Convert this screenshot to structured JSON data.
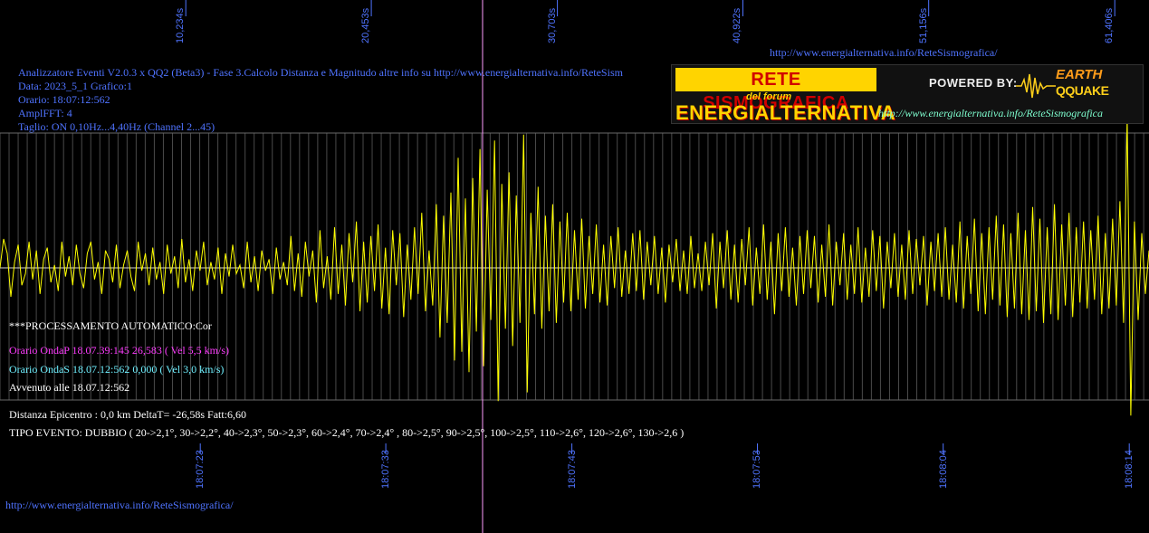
{
  "header": {
    "title": "Analizzatore Eventi V2.0.3 x QQ2 (Beta3) - Fase 3.Calcolo Distanza e Magnitudo altre info su http://www.energialternativa.info/ReteSism",
    "data": "Data: 2023_5_1 Grafico:1",
    "orario": "Orario: 18:07:12:562",
    "ampl": "AmplFFT: 4",
    "taglio": "Taglio: ON 0,10Hz...4,40Hz      (Channel 2...45)"
  },
  "top_url": "http://www.energialternativa.info/ReteSismografica/",
  "bottom_url": "http://www.energialternativa.info/ReteSismografica/",
  "logo": {
    "line1": "RETE SISMOGRAFICA",
    "line2": "del forum",
    "line3": "ENERGIALTERNATIVA",
    "powered": "POWERED BY:",
    "earth": "EARTH",
    "qquake": "QQUAKE",
    "url": "http://www.energialternativa.info/ReteSismografica"
  },
  "info": {
    "processing": "***PROCESSAMENTO AUTOMATICO:Cor",
    "onda_p": "Orario OndaP 18.07.39:145  26,583 ( Vel 5,5 km/s)",
    "onda_s": "Orario OndaS 18.07.12:562  0,000 ( Vel 3,0 km/s)",
    "avvenuto": "Avvenuto alle 18.07.12:562",
    "distanza": "Distanza Epicentro : 0,0 km DeltaT= -26,58s  Fatt:6,60",
    "tipo": "TIPO EVENTO: DUBBIO ( 20->2,1°, 30->2,2°, 40->2,3°, 50->2,3°, 60->2,4°, 70->2,4° , 80->2,5°, 90->2,5°, 100->2,5°, 110->2,6°, 120->2,6°, 130->2,6 )"
  },
  "colors": {
    "background": "#000000",
    "trace": "#ffff00",
    "grid": "#5a5a5a",
    "marker": "#ff9cff",
    "tick_text": "#4f73ff"
  },
  "chart_data": {
    "type": "line",
    "top_ticks": [
      "10,234s",
      "20,453s",
      "30,703s",
      "40,922s",
      "51,156s",
      "61,406s"
    ],
    "top_ticks_seconds": [
      10.234,
      20.453,
      30.703,
      40.922,
      51.156,
      61.406
    ],
    "bottom_ticks": [
      "18:07:23",
      "18:07:33",
      "18:07:43",
      "18:07:53",
      "18:08:04",
      "18:08:14"
    ],
    "x_range_seconds": [
      0,
      63
    ],
    "marker_seconds": 26.583,
    "grid": true,
    "series": [
      {
        "values": [
          0,
          1,
          0.5,
          -1,
          0.2,
          0.8,
          -0.6,
          -0.2,
          0.9,
          -0.4,
          0.6,
          -0.9,
          0.3,
          0.7,
          -0.5,
          0.1,
          -0.8,
          0.9,
          -0.3,
          0.4,
          -0.6,
          0.8,
          -0.2,
          -0.7,
          0.5,
          0.9,
          -0.4,
          0.2,
          -0.9,
          0.6,
          0.3,
          -0.5,
          0.8,
          -0.7,
          0.1,
          0.6,
          -0.3,
          -0.8,
          0.9,
          -0.1,
          0.5,
          -0.6,
          0.7,
          -0.4,
          0.2,
          -0.9,
          0.8,
          -0.2,
          0.4,
          -0.7,
          1,
          -0.5,
          0.3,
          -0.8,
          0.6,
          -0.1,
          0.9,
          -0.6,
          0.2,
          -0.4,
          0.7,
          -0.9,
          0.5,
          -0.3,
          0.8,
          -0.2,
          0.1,
          -0.7,
          0.9,
          -0.5,
          0.4,
          -0.8,
          0.6,
          -0.1,
          0.3,
          -0.9,
          0.7,
          -0.4,
          0.2,
          -0.6,
          1.1,
          -0.8,
          0.5,
          -1,
          0.9,
          -0.3,
          0.6,
          -1.2,
          1.3,
          -0.7,
          0.4,
          -1.1,
          1.4,
          -0.9,
          0.8,
          -1.3,
          1.2,
          -0.5,
          1.6,
          -1.5,
          0.9,
          -1.2,
          1.1,
          -0.8,
          1.5,
          -1.4,
          0.7,
          -1.6,
          1.3,
          -0.6,
          1.2,
          -1.7,
          0.8,
          -1.1,
          1.4,
          -0.9,
          1.9,
          -1.5,
          0.6,
          -1.3,
          2.2,
          -2.4,
          1.8,
          -1.9,
          2.6,
          -3.2,
          3.8,
          -2.9,
          2.4,
          -3.6,
          3.1,
          -2.2,
          4.1,
          -3.4,
          2.7,
          -1.8,
          4.4,
          -4.6,
          2.9,
          -2.1,
          3.3,
          -2.7,
          2.5,
          -1.9,
          4.6,
          -4.3,
          1.9,
          -1.6,
          2.8,
          -2.1,
          1.8,
          -1.5,
          2.2,
          -1.9,
          1.6,
          -1.2,
          1.9,
          -1.5,
          1.3,
          -1.1,
          1.7,
          -1.4,
          1.1,
          -0.9,
          1.5,
          -1.2,
          0.8,
          -1.3,
          1.1,
          -0.7,
          1.4,
          -1,
          0.6,
          -0.9,
          1.2,
          -0.8,
          1.3,
          -1.1,
          0.9,
          -0.6,
          1.1,
          -0.9,
          0.7,
          -1.2,
          0.8,
          -0.5,
          1,
          -0.8,
          0.6,
          -0.9,
          1.1,
          -0.7,
          0.5,
          -0.8,
          0.9,
          -0.6,
          1.2,
          -1.4,
          0.9,
          -0.7,
          1.3,
          -1.1,
          0.8,
          -1.2,
          1,
          -0.6,
          1.4,
          -1.3,
          0.7,
          -0.9,
          1.5,
          -1.1,
          0.9,
          -1.6,
          1.2,
          -0.8,
          1.4,
          -1,
          0.7,
          -1.3,
          1.1,
          -0.9,
          1.3,
          -0.7,
          1.1,
          -1.2,
          0.8,
          -1,
          1.5,
          -1.3,
          0.9,
          -0.6,
          1.2,
          -1.1,
          0.8,
          -0.9,
          1.4,
          -1.2,
          0.7,
          -1,
          1.3,
          -0.8,
          1.1,
          -1.4,
          0.9,
          -0.7,
          1.2,
          -1,
          0.8,
          -1.1,
          1.3,
          -0.9,
          1,
          -0.6,
          1.1,
          -1.3,
          0.9,
          -0.8,
          1.2,
          -1,
          1.4,
          -1.1,
          0.8,
          -1.2,
          1.6,
          -1.4,
          1.1,
          -0.9,
          1.7,
          -1.5,
          1.2,
          -1.6,
          1.4,
          -1.1,
          1.8,
          -1.3,
          1.5,
          -1.7,
          1.2,
          -1.4,
          1.9,
          -1.6,
          1.3,
          -1.8,
          2.1,
          -1.5,
          1.7,
          -1.9,
          1.4,
          -1.6,
          2.2,
          -1.8,
          1.5,
          -1.3,
          1.9,
          -1.7,
          1.4,
          -1.2,
          1.6,
          -1.4,
          1.3,
          -1.1,
          1.8,
          -1.6,
          1.2,
          -1.4,
          1.7,
          -1.3,
          2.3,
          -1.9,
          5.2,
          -5.1,
          1.6,
          -1.8,
          1.2,
          -0.9,
          0.6
        ]
      }
    ]
  }
}
